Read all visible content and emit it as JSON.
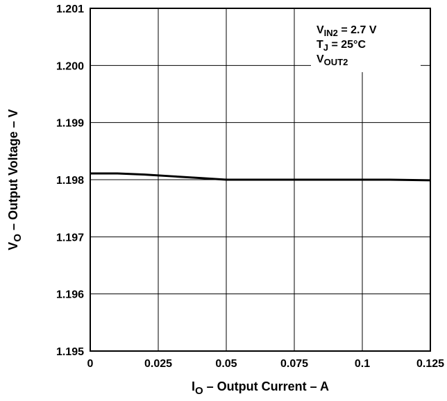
{
  "chart_data": {
    "type": "line",
    "title": "",
    "xlabel": {
      "main": "I",
      "sub": "O",
      "rest": " – Output Current – A"
    },
    "ylabel": {
      "main": "V",
      "sub": "O",
      "rest": " – Output Voltage – V"
    },
    "xlim": [
      0,
      0.125
    ],
    "ylim": [
      1.195,
      1.201
    ],
    "x_ticks": [
      0,
      0.025,
      0.05,
      0.075,
      0.1,
      0.125
    ],
    "x_tick_labels": [
      "0",
      "0.025",
      "0.05",
      "0.075",
      "0.1",
      "0.125"
    ],
    "y_ticks": [
      1.195,
      1.196,
      1.197,
      1.198,
      1.199,
      1.2,
      1.201
    ],
    "y_tick_labels": [
      "1.195",
      "1.196",
      "1.197",
      "1.198",
      "1.199",
      "1.200",
      "1.201"
    ],
    "grid": true,
    "annotation_lines": [
      {
        "main": "V",
        "sub": "IN2",
        "rest": " = 2.7 V"
      },
      {
        "main": "T",
        "sub": "J",
        "rest": " = 25°C"
      },
      {
        "main": "V",
        "sub": "OUT2",
        "rest": ""
      }
    ],
    "series": [
      {
        "x": [
          0,
          0.01,
          0.02,
          0.03,
          0.04,
          0.05,
          0.06,
          0.075,
          0.09,
          0.1,
          0.11,
          0.125
        ],
        "y": [
          1.19811,
          1.19811,
          1.19809,
          1.19806,
          1.19803,
          1.198,
          1.198,
          1.198,
          1.198,
          1.198,
          1.198,
          1.19799
        ]
      }
    ],
    "colors": {
      "line": "#000000",
      "grid": "#000000",
      "background": "#ffffff"
    }
  }
}
